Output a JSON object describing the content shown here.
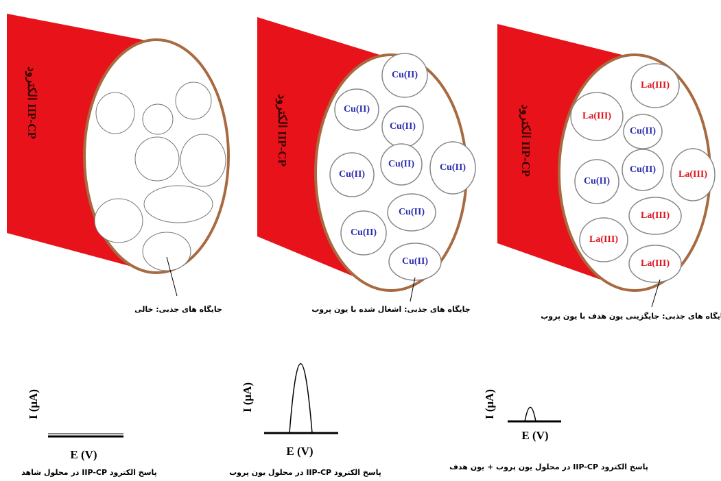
{
  "panels": [
    {
      "electrode_label": "الکترود IIP-CP",
      "sites": [],
      "site_caption": "جایگاه های جذبی: خالی",
      "y_axis": "I (μA)",
      "x_axis": "E (V)",
      "response_caption": "پاسخ الکترود IIP-CP در محلول شاهد"
    },
    {
      "electrode_label": "الکترود IIP-CP",
      "sites": [
        "Cu(II)",
        "Cu(II)",
        "Cu(II)",
        "Cu(II)",
        "Cu(II)",
        "Cu(II)",
        "Cu(II)",
        "Cu(II)",
        "Cu(II)"
      ],
      "site_caption": "جایگاه های جذبی: اشغال شده با یون پروب",
      "y_axis": "I (μA)",
      "x_axis": "E (V)",
      "response_caption": "پاسخ الکترود IIP-CP در محلول یون پروب"
    },
    {
      "electrode_label": "الکترود IIP-CP",
      "sites": [
        "La(III)",
        "La(III)",
        "Cu(II)",
        "Cu(II)",
        "Cu(II)",
        "La(III)",
        "La(III)",
        "La(III)",
        "La(III)"
      ],
      "site_caption": "جایگاه های جذبی: جایگزینی یون هدف با یون پروب",
      "y_axis": "I (μA)",
      "x_axis": "E (V)",
      "response_caption": "پاسخ الکترود IIP-CP در محلول یون پروب + یون هدف"
    }
  ]
}
